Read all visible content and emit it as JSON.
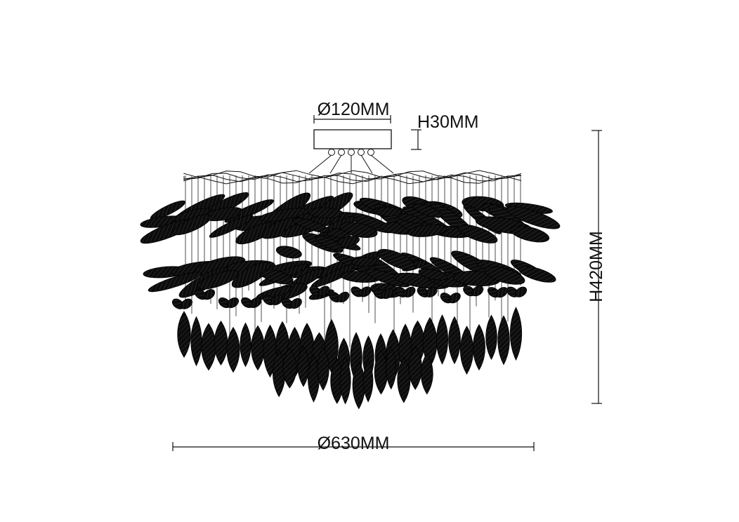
{
  "dimensions": {
    "canopy_diameter": "Ø120MM",
    "canopy_height": "H30MM",
    "total_height": "H420MM",
    "total_diameter": "Ø630MM"
  },
  "colors": {
    "line": "#111111",
    "leaf": "#0d0d0d",
    "background": "#ffffff"
  }
}
